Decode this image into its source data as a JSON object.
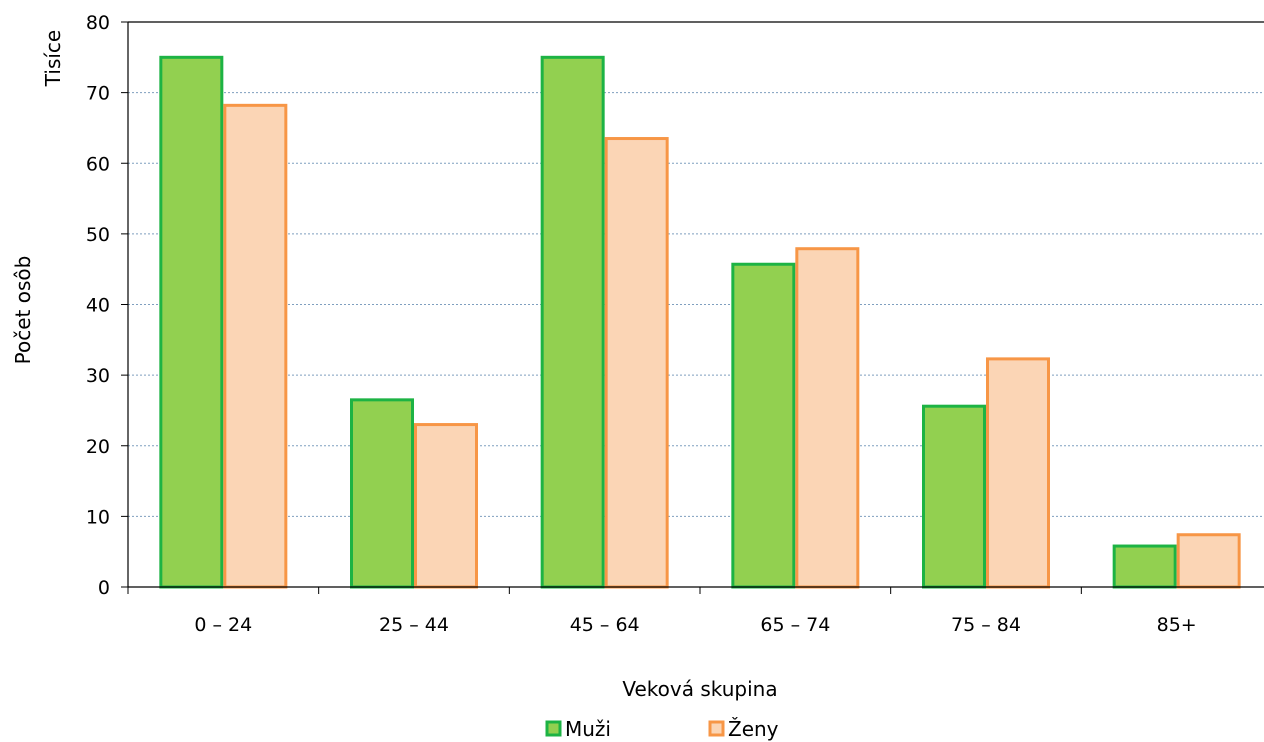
{
  "chart_data": {
    "type": "bar",
    "categories": [
      "0 – 24",
      "25 – 44",
      "45 – 64",
      "65 – 74",
      "75 – 84",
      "85+"
    ],
    "series": [
      {
        "name": "Muži",
        "values": [
          75,
          26.5,
          75,
          45.7,
          25.6,
          5.8
        ],
        "fill": "#92d050",
        "stroke": "#1db344"
      },
      {
        "name": "Ženy",
        "values": [
          68.2,
          23,
          63.5,
          47.9,
          32.3,
          7.4
        ],
        "fill": "#fbd5b5",
        "stroke": "#f79646"
      }
    ],
    "xlabel": "Veková skupina",
    "ylabel": "Počet osôb",
    "unit_label": "Tisíce",
    "ylim": [
      0,
      80
    ],
    "yticks": [
      "0",
      "10",
      "20",
      "30",
      "40",
      "50",
      "60",
      "70",
      "80"
    ],
    "grid": true,
    "legend_position": "bottom"
  }
}
